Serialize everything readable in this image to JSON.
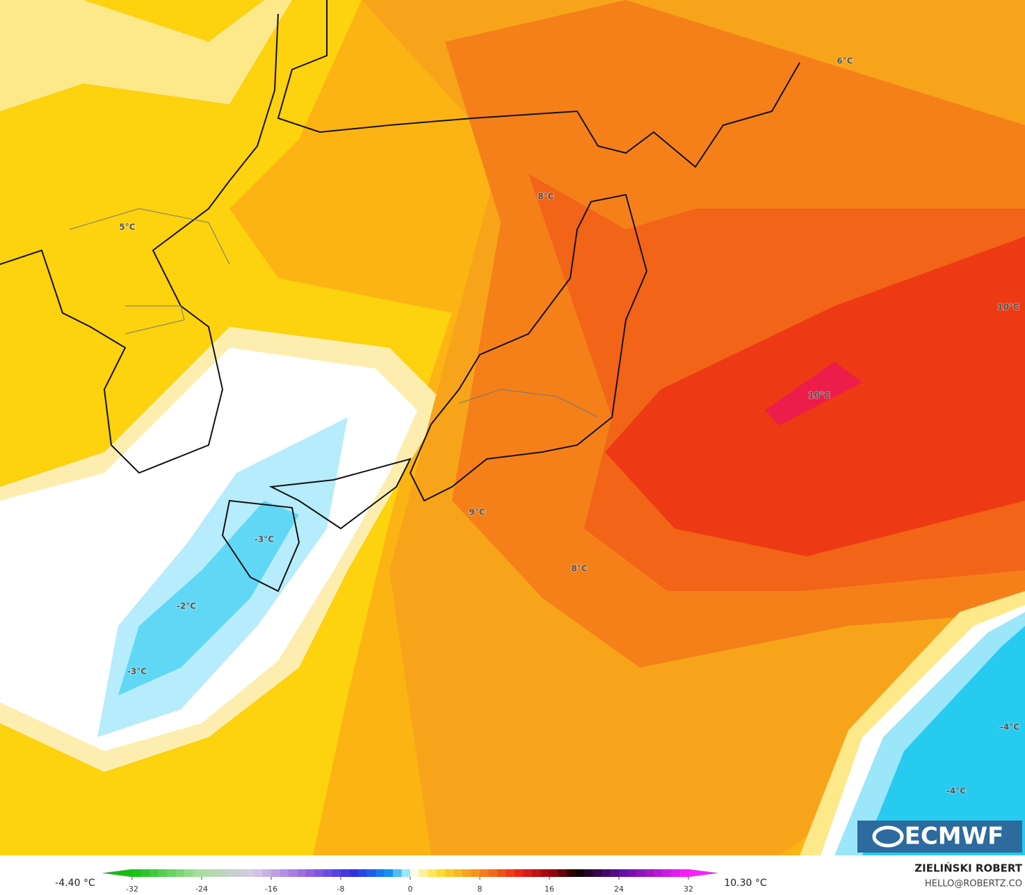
{
  "map": {
    "labels": [
      "6°C",
      "8°C",
      "5°C",
      "10°C",
      "10°C",
      "9°C",
      "8°C",
      "-3°C",
      "-2°C",
      "-3°C",
      "-4°C",
      "-4°C"
    ]
  },
  "colorbar": {
    "min_label": "-4.40 °C",
    "max_label": "10.30 °C",
    "ticks": [
      -32,
      -24,
      -16,
      -8,
      0,
      8,
      16,
      24,
      32
    ]
  },
  "credit": {
    "author": "ZIELIŃSKI ROBERT",
    "email": "HELLO@ROBERTZ.CO"
  },
  "logo": "ECMWF"
}
